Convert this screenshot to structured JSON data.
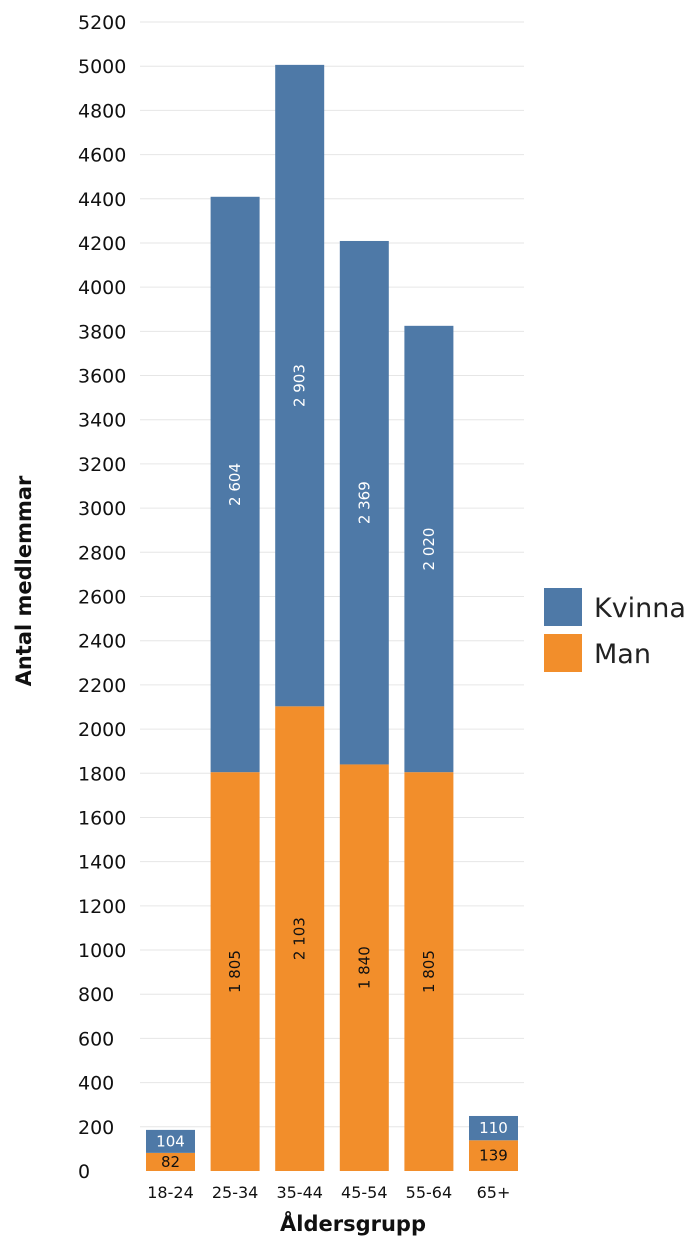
{
  "chart_data": {
    "type": "bar",
    "stacked": true,
    "categories": [
      "18-24",
      "25-34",
      "35-44",
      "45-54",
      "55-64",
      "65+"
    ],
    "series": [
      {
        "name": "Man",
        "color": "#F28E2B",
        "values": [
          82,
          1805,
          2103,
          1840,
          1805,
          139
        ],
        "labels": [
          "82",
          "1 805",
          "2 103",
          "1 840",
          "1 805",
          "139"
        ],
        "label_color": "#111111"
      },
      {
        "name": "Kvinna",
        "color": "#4E79A7",
        "values": [
          104,
          2604,
          2903,
          2369,
          2020,
          110
        ],
        "labels": [
          "104",
          "2 604",
          "2 903",
          "2 369",
          "2 020",
          "110"
        ],
        "label_color": "#ffffff"
      }
    ],
    "y_ticks": [
      0,
      200,
      400,
      600,
      800,
      1000,
      1200,
      1400,
      1600,
      1800,
      2000,
      2200,
      2400,
      2600,
      2800,
      3000,
      3200,
      3400,
      3600,
      3800,
      4000,
      4200,
      4400,
      4600,
      4800,
      5000,
      5200
    ],
    "ylim": [
      0,
      5200
    ],
    "xlabel": "Åldersgrupp",
    "ylabel": "Antal medlemmar",
    "grid": true,
    "legend": {
      "placement": "right",
      "items": [
        {
          "label": "Kvinna",
          "color": "#4E79A7"
        },
        {
          "label": "Man",
          "color": "#F28E2B"
        }
      ]
    }
  }
}
